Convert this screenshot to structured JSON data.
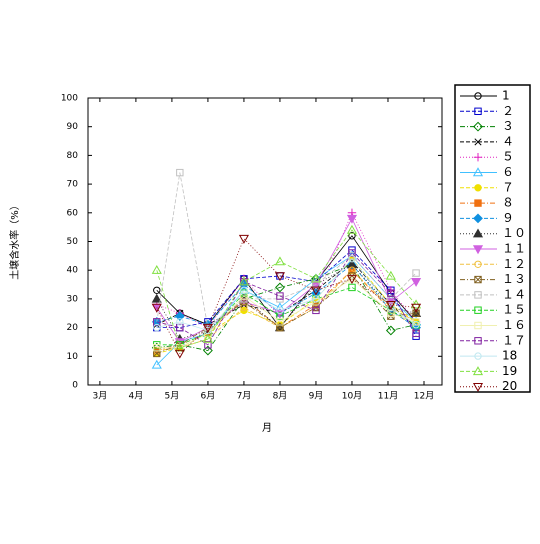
{
  "chart_data": {
    "type": "line",
    "xlabel": "月",
    "ylabel": "土壌含水率（%）",
    "x": [
      4.58,
      5.22,
      6.0,
      7.0,
      8.0,
      9.0,
      10.0,
      11.08,
      11.78
    ],
    "xlim": [
      2.67,
      12.5
    ],
    "xticks": [
      {
        "value": 3,
        "label": "3月"
      },
      {
        "value": 4,
        "label": "4月"
      },
      {
        "value": 5,
        "label": "5月"
      },
      {
        "value": 6,
        "label": "6月"
      },
      {
        "value": 7,
        "label": "7月"
      },
      {
        "value": 8,
        "label": "8月"
      },
      {
        "value": 9,
        "label": "9月"
      },
      {
        "value": 10,
        "label": "10月"
      },
      {
        "value": 11,
        "label": "11月"
      },
      {
        "value": 12,
        "label": "12月"
      }
    ],
    "ylim": [
      0,
      100
    ],
    "yticks": [
      0,
      10,
      20,
      30,
      40,
      50,
      60,
      70,
      80,
      90,
      100
    ],
    "legend": "right",
    "series": [
      {
        "name": "1",
        "color": "#000000",
        "marker": "circle",
        "dash": "solid",
        "values": [
          33,
          25,
          21,
          37,
          20,
          36,
          52,
          32,
          22
        ]
      },
      {
        "name": "２",
        "color": "#0000cc",
        "marker": "square",
        "dash": "dashed",
        "values": [
          20,
          20,
          22,
          37,
          38,
          36,
          47,
          33,
          17
        ]
      },
      {
        "name": "３",
        "color": "#008000",
        "marker": "diamond",
        "dash": "dashdot",
        "values": [
          13,
          14,
          12,
          30,
          34,
          37,
          42,
          19,
          21
        ]
      },
      {
        "name": "４",
        "color": "#000000",
        "marker": "x",
        "dash": "dashed",
        "values": [
          21,
          25,
          21,
          28,
          25,
          33,
          43,
          28,
          20
        ]
      },
      {
        "name": "５",
        "color": "#e020c0",
        "marker": "plus",
        "dash": "dotted",
        "values": [
          28,
          25,
          20,
          37,
          24,
          30,
          60,
          33,
          22
        ]
      },
      {
        "name": "６",
        "color": "#40c0ff",
        "marker": "triangle",
        "dash": "solid",
        "values": [
          7,
          15,
          18,
          33,
          27,
          37,
          45,
          30,
          22
        ]
      },
      {
        "name": "７",
        "color": "#f0e000",
        "marker": "circle-filled",
        "dash": "dashed",
        "values": [
          11,
          13,
          18,
          26,
          21,
          30,
          44,
          28,
          22
        ]
      },
      {
        "name": "８",
        "color": "#f07010",
        "marker": "square-filled",
        "dash": "dashdot",
        "values": [
          12,
          14,
          18,
          30,
          20,
          28,
          40,
          26,
          20
        ]
      },
      {
        "name": "９",
        "color": "#1090e0",
        "marker": "diamond-filled",
        "dash": "dashed",
        "values": [
          22,
          24,
          21,
          35,
          25,
          32,
          42,
          26,
          20
        ]
      },
      {
        "name": "１０",
        "color": "#303030",
        "marker": "triangle-filled",
        "dash": "dotted",
        "values": [
          30,
          16,
          19,
          30,
          20,
          35,
          42,
          27,
          25
        ]
      },
      {
        "name": "１１",
        "color": "#d060e0",
        "marker": "triangle-down-filled",
        "dash": "solid",
        "values": [
          27,
          15,
          20,
          29,
          25,
          35,
          58,
          29,
          36
        ]
      },
      {
        "name": "１２",
        "color": "#f0c040",
        "marker": "circle",
        "dash": "dashed",
        "values": [
          12,
          13,
          16,
          27,
          20,
          27,
          40,
          27,
          22
        ]
      },
      {
        "name": "１３",
        "color": "#806020",
        "marker": "square-x",
        "dash": "dashdot",
        "values": [
          11,
          14,
          20,
          29,
          20,
          27,
          38,
          24,
          25
        ]
      },
      {
        "name": "１４",
        "color": "#c0c0c0",
        "marker": "square",
        "dash": "dashed",
        "values": [
          22,
          74,
          20,
          30,
          30,
          35,
          45,
          30,
          39
        ]
      },
      {
        "name": "１５",
        "color": "#20d020",
        "marker": "square",
        "dash": "dashed",
        "values": [
          14,
          14,
          18,
          32,
          24,
          30,
          34,
          26,
          21
        ]
      },
      {
        "name": "１６",
        "color": "#f0f0b0",
        "marker": "square",
        "dash": "solid",
        "values": [
          13,
          13,
          18,
          31,
          22,
          29,
          37,
          25,
          22
        ]
      },
      {
        "name": "１７",
        "color": "#8020a0",
        "marker": "square",
        "dash": "dashed",
        "values": [
          22,
          20,
          14,
          36,
          31,
          26,
          46,
          32,
          18
        ]
      },
      {
        "name": "18",
        "color": "#c0e8f0",
        "marker": "circle",
        "dash": "solid",
        "values": [
          20,
          22,
          19,
          33,
          26,
          30,
          44,
          27,
          21
        ]
      },
      {
        "name": "19",
        "color": "#80e040",
        "marker": "triangle",
        "dash": "dashed",
        "values": [
          40,
          13,
          16,
          36,
          43,
          37,
          54,
          38,
          28
        ]
      },
      {
        "name": "20",
        "color": "#800000",
        "marker": "triangle-down",
        "dash": "dotted",
        "values": [
          27,
          11,
          20,
          51,
          38,
          33,
          37,
          28,
          27
        ]
      }
    ]
  }
}
